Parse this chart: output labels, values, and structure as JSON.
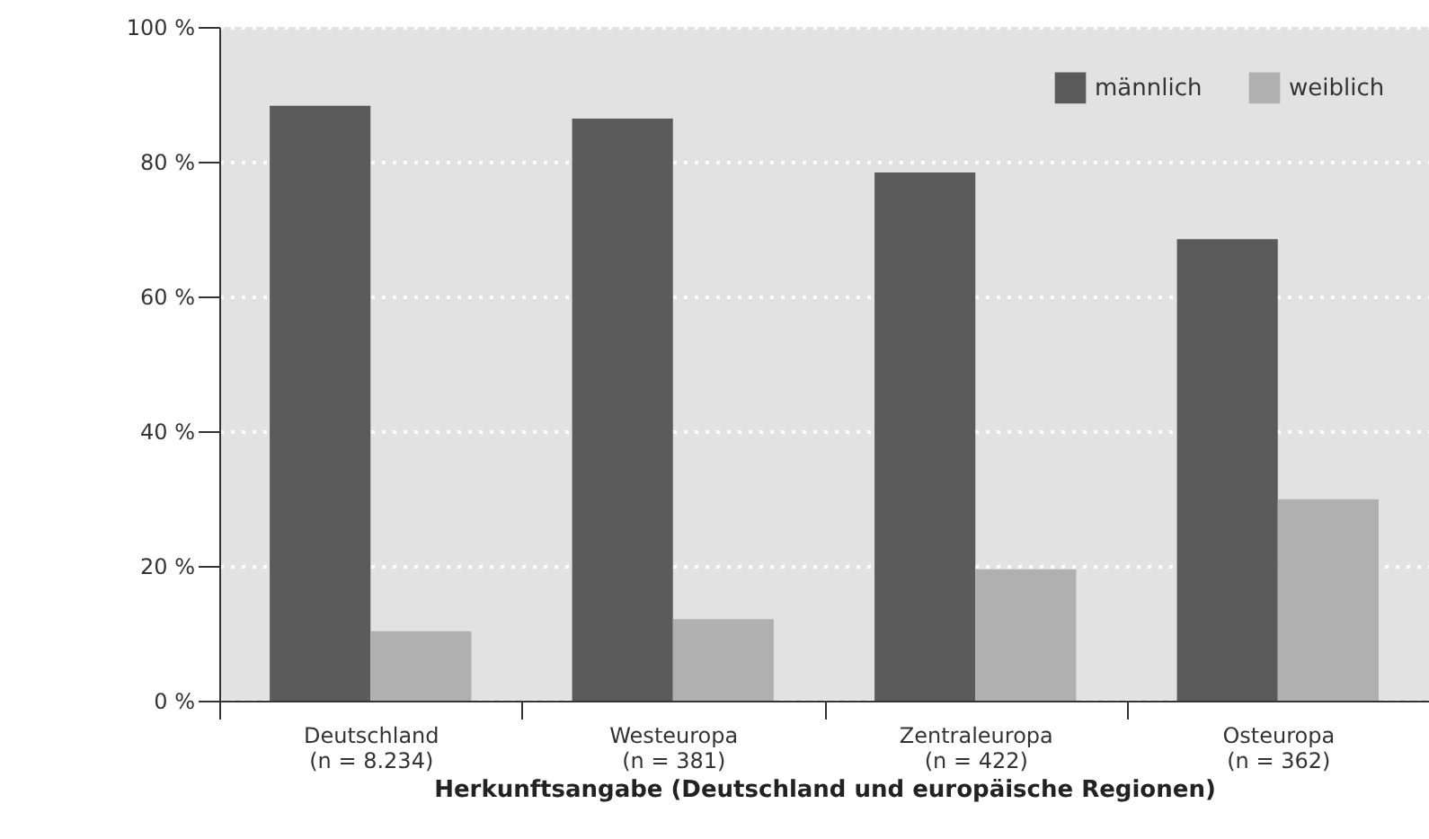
{
  "chart_data": {
    "type": "bar",
    "categories": [
      "Deutschland\n(n = 8.234)",
      "Westeuropa\n(n = 381)",
      "Zentraleuropa\n(n = 422)",
      "Osteuropa\n(n = 362)"
    ],
    "xlabel": "Herkunftsangabe (Deutschland und europäische Regionen)",
    "series": [
      {
        "name": "männlich",
        "color": "#5b5b5b",
        "values": [
          88.3,
          86.4,
          78.4,
          68.5
        ]
      },
      {
        "name": "weiblich",
        "color": "#b0b0b0",
        "values": [
          10.3,
          12.1,
          19.5,
          29.9
        ]
      }
    ],
    "ylim": [
      0,
      100
    ],
    "yticks": [
      {
        "value": 0,
        "label": "0 %"
      },
      {
        "value": 20,
        "label": "20 %"
      },
      {
        "value": 40,
        "label": "40 %"
      },
      {
        "value": 60,
        "label": "60 %"
      },
      {
        "value": 80,
        "label": "80 %"
      },
      {
        "value": 100,
        "label": "100 %"
      }
    ],
    "grid": "y",
    "legend": "top right"
  }
}
